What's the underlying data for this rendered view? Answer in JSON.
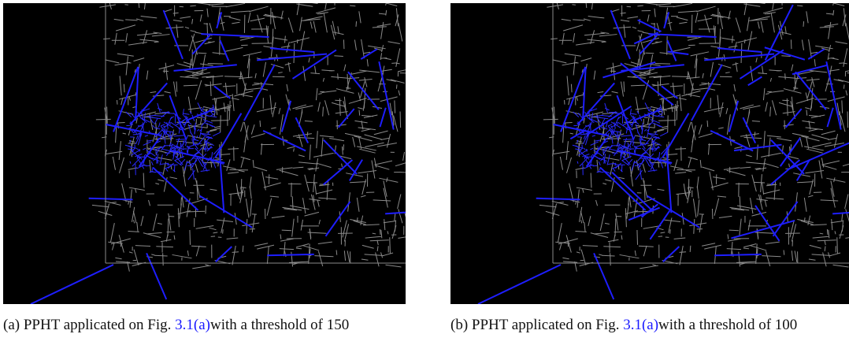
{
  "figures": [
    {
      "label": "(a)",
      "before": "PPHT applicated on Fig.",
      "ref": "3.1(a)",
      "after": "with a threshold of 150"
    },
    {
      "label": "(b)",
      "before": "PPHT applicated on Fig.",
      "ref": "3.1(a)",
      "after": "with a threshold of 100"
    }
  ]
}
